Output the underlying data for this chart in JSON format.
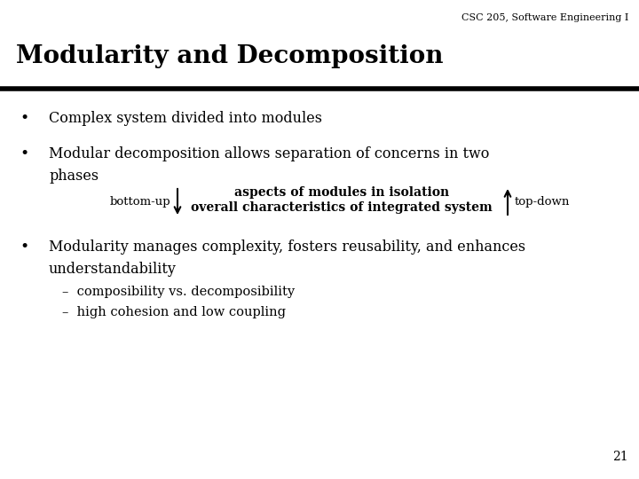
{
  "background_color": "#ffffff",
  "header_text": "CSC 205, Software Engineering I",
  "title": "Modularity and Decomposition",
  "title_fontsize": 20,
  "header_fontsize": 8,
  "rule_color": "#000000",
  "rule_linewidth": 4,
  "bullet1": "Complex system divided into modules",
  "bullet2_line1": "Modular decomposition allows separation of concerns in two",
  "bullet2_line2": "phases",
  "bullet3_line1": "Modularity manages complexity, fosters reusability, and enhances",
  "bullet3_line2": "understandability",
  "sub1": "composibility vs. decomposibility",
  "sub2": "high cohesion and low coupling",
  "diagram_label_left": "bottom-up",
  "diagram_label_right": "top-down",
  "diagram_text_top": "aspects of modules in isolation",
  "diagram_text_bottom": "overall characteristics of integrated system",
  "page_number": "21",
  "font_family": "DejaVu Serif",
  "body_fontsize": 11.5,
  "sub_fontsize": 10.5,
  "diag_fontsize": 9.5
}
